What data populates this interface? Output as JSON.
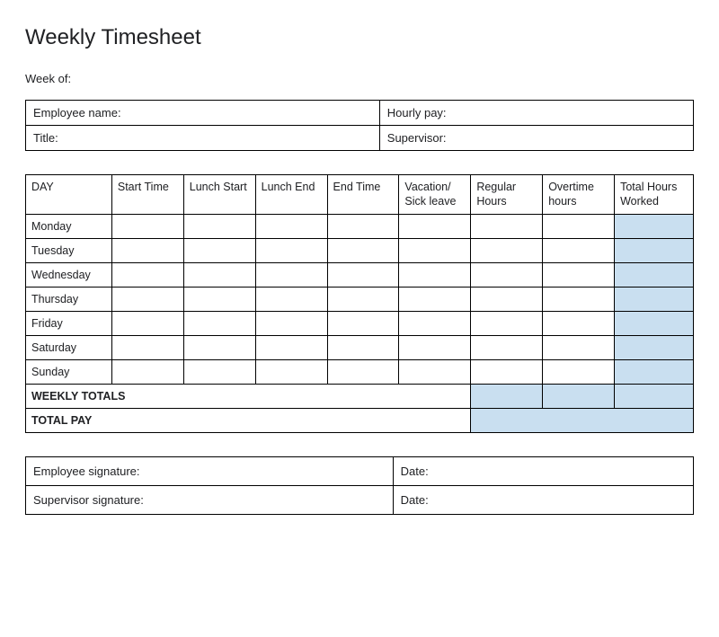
{
  "title": "Weekly Timesheet",
  "week_of_label": "Week of:",
  "info": {
    "employee_name_label": "Employee name:",
    "hourly_pay_label": "Hourly pay:",
    "title_label": "Title:",
    "supervisor_label": "Supervisor:"
  },
  "timesheet": {
    "columns": [
      "DAY",
      "Start Time",
      "Lunch Start",
      "Lunch End",
      "End Time",
      "Vacation/ Sick leave",
      "Regular Hours",
      "Overtime hours",
      "Total Hours Worked"
    ],
    "days": [
      "Monday",
      "Tuesday",
      "Wednesday",
      "Thursday",
      "Friday",
      "Saturday",
      "Sunday"
    ],
    "weekly_totals_label": "WEEKLY TOTALS",
    "total_pay_label": "TOTAL PAY",
    "highlight_color": "#c9dff0"
  },
  "signatures": {
    "employee_sig_label": "Employee signature:",
    "supervisor_sig_label": "Supervisor signature:",
    "date_label": "Date:"
  }
}
